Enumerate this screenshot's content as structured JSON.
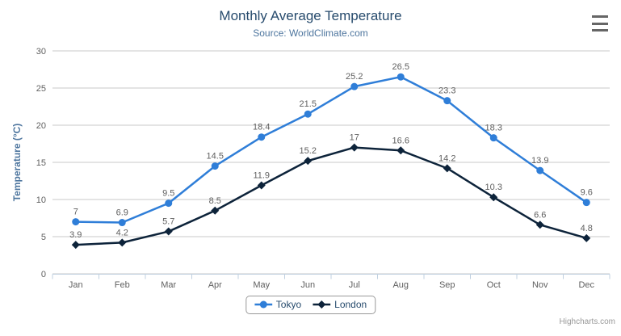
{
  "header": {
    "title": "Monthly Average Temperature",
    "subtitle": "Source: WorldClimate.com"
  },
  "export_menu": {
    "icon": "hamburger-icon",
    "bar_color": "#666666"
  },
  "chart_data": {
    "type": "line",
    "title": "Monthly Average Temperature",
    "subtitle": "Source: WorldClimate.com",
    "categories": [
      "Jan",
      "Feb",
      "Mar",
      "Apr",
      "May",
      "Jun",
      "Jul",
      "Aug",
      "Sep",
      "Oct",
      "Nov",
      "Dec"
    ],
    "series": [
      {
        "name": "Tokyo",
        "color": "#2f7ed8",
        "marker": "circle",
        "values": [
          7,
          6.9,
          9.5,
          14.5,
          18.4,
          21.5,
          25.2,
          26.5,
          23.3,
          18.3,
          13.9,
          9.6
        ]
      },
      {
        "name": "London",
        "color": "#0d233a",
        "marker": "diamond",
        "values": [
          3.9,
          4.2,
          5.7,
          8.5,
          11.9,
          15.2,
          17,
          16.6,
          14.2,
          10.3,
          6.6,
          4.8
        ]
      }
    ],
    "xlabel": "",
    "ylabel": "Temperature (°C)",
    "ylim": [
      0,
      30
    ],
    "ytick_interval": 5,
    "grid": true,
    "data_labels": true,
    "legend_position": "bottom",
    "style": {
      "title_color": "#274b6d",
      "subtitle_color": "#4d759e",
      "axis_title_color": "#4d759e",
      "tick_label_color": "#606060",
      "data_label_color": "#606060",
      "grid_color": "#c8c8c8",
      "axis_line_color": "#c0d0e0",
      "legend_text_color": "#274b6d",
      "legend_border_color": "#999999",
      "credits_color": "#999999"
    }
  },
  "credits": {
    "text": "Highcharts.com"
  }
}
